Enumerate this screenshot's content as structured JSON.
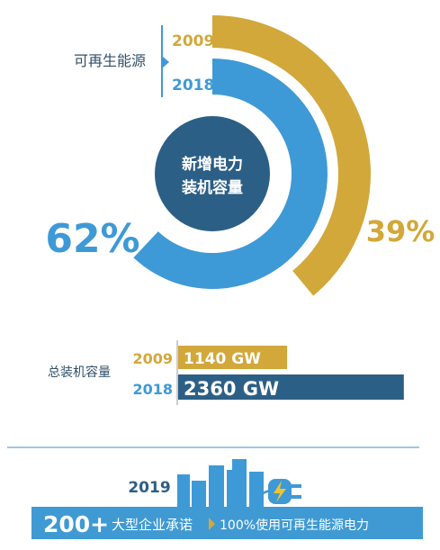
{
  "colors": {
    "gold": "#D2A83A",
    "light_blue": "#3E9AD6",
    "dark_blue": "#2C5F86",
    "navy_text": "#2F4F6A",
    "banner_blue": "#3F9AD3",
    "building_blue": "#3E9AD6"
  },
  "renewable_section": {
    "label": "可再生能源",
    "year_2009": "2009",
    "year_2018": "2018",
    "center_line1": "新增电力",
    "center_line2": "装机容量"
  },
  "capacity_section": {
    "label": "总装机容量"
  },
  "commitment_section": {
    "year": "2019",
    "count": "200+",
    "desc1": "大型企业承诺",
    "desc2": "100%使用可再生能源电力"
  },
  "chart_data": [
    {
      "type": "pie",
      "title": "新增电力装机容量",
      "series_label": "可再生能源",
      "series": [
        {
          "name": "2009",
          "value": 39,
          "value_label": "39%",
          "color": "#D2A83A"
        },
        {
          "name": "2018",
          "value": 62,
          "value_label": "62%",
          "color": "#3E9AD6"
        }
      ]
    },
    {
      "type": "bar",
      "title": "总装机容量",
      "categories": [
        "2009",
        "2018"
      ],
      "values": [
        1140,
        2360
      ],
      "value_labels": [
        "1140 GW",
        "2360 GW"
      ],
      "unit": "GW",
      "xlim": [
        0,
        2400
      ],
      "colors": [
        "#D2A83A",
        "#2C5F86"
      ]
    }
  ]
}
